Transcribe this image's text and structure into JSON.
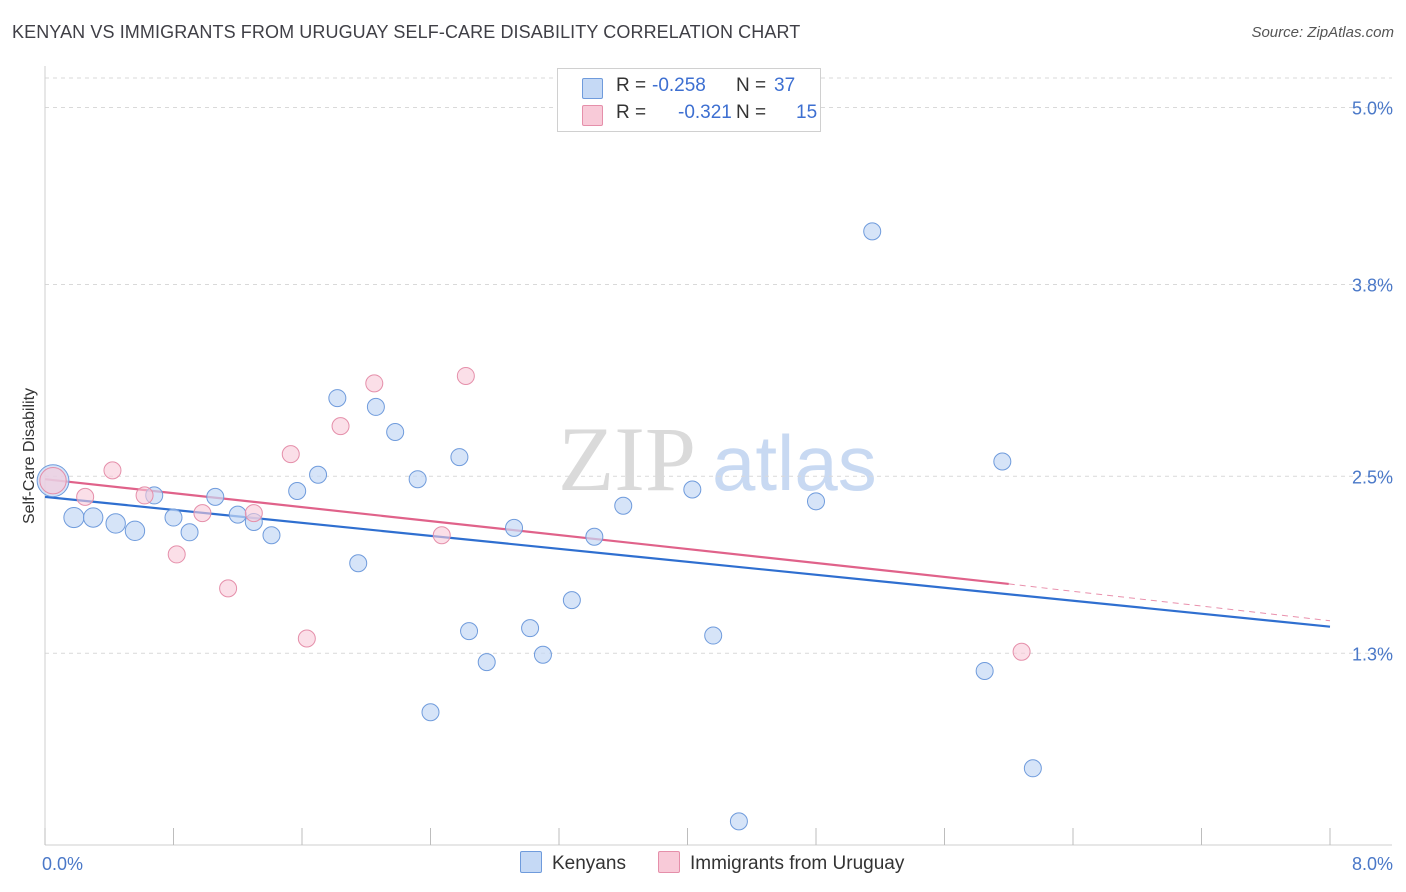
{
  "title": "KENYAN VS IMMIGRANTS FROM URUGUAY SELF-CARE DISABILITY CORRELATION CHART",
  "source": "Source: ZipAtlas.com",
  "watermark": {
    "zip": "ZIP",
    "atlas": "atlas"
  },
  "colors": {
    "blue_fill": "#c5d9f5",
    "blue_stroke": "#6f9bdc",
    "blue_line": "#2f6fd0",
    "pink_fill": "#f8cad8",
    "pink_stroke": "#e58faa",
    "pink_line": "#e0628a",
    "grid": "#d9d9d9",
    "axis_text": "#4a78c8"
  },
  "legend": {
    "rows": [
      {
        "r_label": "R =",
        "r_value": "-0.258",
        "n_label": "N =",
        "n_value": "37"
      },
      {
        "r_label": "R =",
        "r_value": "-0.321",
        "n_label": "N =",
        "n_value": "15"
      }
    ]
  },
  "bottom_legend": {
    "series1": "Kenyans",
    "series2": "Immigrants from Uruguay"
  },
  "chart_data": {
    "type": "scatter",
    "title": "KENYAN VS IMMIGRANTS FROM URUGUAY SELF-CARE DISABILITY CORRELATION CHART",
    "xlabel": "",
    "ylabel": "Self-Care Disability",
    "xlim": [
      0,
      8
    ],
    "ylim": [
      0,
      5.2
    ],
    "x_tick_labels": [
      "0.0%",
      "8.0%"
    ],
    "y_ticks": [
      1.3,
      2.5,
      3.8,
      5.0
    ],
    "y_tick_labels": [
      "1.3%",
      "2.5%",
      "3.8%",
      "5.0%"
    ],
    "grid": true,
    "series": [
      {
        "name": "Kenyans",
        "r": -0.258,
        "n": 37,
        "trend": {
          "x": [
            0,
            8
          ],
          "y": [
            2.36,
            1.48
          ]
        },
        "points": [
          {
            "x": 0.05,
            "y": 2.47,
            "s": 3.5
          },
          {
            "x": 0.18,
            "y": 2.22,
            "s": 1.4
          },
          {
            "x": 0.3,
            "y": 2.22,
            "s": 1.3
          },
          {
            "x": 0.44,
            "y": 2.18,
            "s": 1.3
          },
          {
            "x": 0.56,
            "y": 2.13,
            "s": 1.3
          },
          {
            "x": 0.68,
            "y": 2.37,
            "s": 1.0
          },
          {
            "x": 0.8,
            "y": 2.22,
            "s": 1.0
          },
          {
            "x": 0.9,
            "y": 2.12,
            "s": 1.0
          },
          {
            "x": 1.06,
            "y": 2.36,
            "s": 1.0
          },
          {
            "x": 1.2,
            "y": 2.24,
            "s": 1.0
          },
          {
            "x": 1.3,
            "y": 2.19,
            "s": 1.0
          },
          {
            "x": 1.41,
            "y": 2.1,
            "s": 1.0
          },
          {
            "x": 1.57,
            "y": 2.4,
            "s": 1.0
          },
          {
            "x": 1.7,
            "y": 2.51,
            "s": 1.0
          },
          {
            "x": 1.82,
            "y": 3.03,
            "s": 1.0
          },
          {
            "x": 1.95,
            "y": 1.91,
            "s": 1.0
          },
          {
            "x": 2.06,
            "y": 2.97,
            "s": 1.0
          },
          {
            "x": 2.18,
            "y": 2.8,
            "s": 1.0
          },
          {
            "x": 2.32,
            "y": 2.48,
            "s": 1.0
          },
          {
            "x": 2.4,
            "y": 0.9,
            "s": 1.0
          },
          {
            "x": 2.58,
            "y": 2.63,
            "s": 1.0
          },
          {
            "x": 2.64,
            "y": 1.45,
            "s": 1.0
          },
          {
            "x": 2.75,
            "y": 1.24,
            "s": 1.0
          },
          {
            "x": 2.92,
            "y": 2.15,
            "s": 1.0
          },
          {
            "x": 3.02,
            "y": 1.47,
            "s": 1.0
          },
          {
            "x": 3.1,
            "y": 1.29,
            "s": 1.0
          },
          {
            "x": 3.28,
            "y": 1.66,
            "s": 1.0
          },
          {
            "x": 3.42,
            "y": 2.09,
            "s": 1.0
          },
          {
            "x": 3.6,
            "y": 2.3,
            "s": 1.0
          },
          {
            "x": 4.03,
            "y": 2.41,
            "s": 1.0
          },
          {
            "x": 4.16,
            "y": 1.42,
            "s": 1.0
          },
          {
            "x": 4.32,
            "y": 0.16,
            "s": 1.0
          },
          {
            "x": 4.8,
            "y": 2.33,
            "s": 1.0
          },
          {
            "x": 5.15,
            "y": 4.16,
            "s": 1.0
          },
          {
            "x": 5.85,
            "y": 1.18,
            "s": 1.0
          },
          {
            "x": 5.96,
            "y": 2.6,
            "s": 1.0
          },
          {
            "x": 6.15,
            "y": 0.52,
            "s": 1.0
          }
        ]
      },
      {
        "name": "Immigrants from Uruguay",
        "r": -0.321,
        "n": 15,
        "trend": {
          "x": [
            0,
            6.0
          ],
          "y": [
            2.48,
            1.77
          ]
        },
        "trend_dashed": {
          "x": [
            6.0,
            8
          ],
          "y": [
            1.77,
            1.52
          ]
        },
        "points": [
          {
            "x": 0.05,
            "y": 2.47,
            "s": 2.4
          },
          {
            "x": 0.25,
            "y": 2.36,
            "s": 1.0
          },
          {
            "x": 0.42,
            "y": 2.54,
            "s": 1.0
          },
          {
            "x": 0.62,
            "y": 2.37,
            "s": 1.0
          },
          {
            "x": 0.82,
            "y": 1.97,
            "s": 1.0
          },
          {
            "x": 0.98,
            "y": 2.25,
            "s": 1.0
          },
          {
            "x": 1.14,
            "y": 1.74,
            "s": 1.0
          },
          {
            "x": 1.3,
            "y": 2.25,
            "s": 1.0
          },
          {
            "x": 1.53,
            "y": 2.65,
            "s": 1.0
          },
          {
            "x": 1.63,
            "y": 1.4,
            "s": 1.0
          },
          {
            "x": 1.84,
            "y": 2.84,
            "s": 1.0
          },
          {
            "x": 2.05,
            "y": 3.13,
            "s": 1.0
          },
          {
            "x": 2.47,
            "y": 2.1,
            "s": 1.0
          },
          {
            "x": 2.62,
            "y": 3.18,
            "s": 1.0
          },
          {
            "x": 6.08,
            "y": 1.31,
            "s": 1.0
          }
        ]
      }
    ]
  }
}
